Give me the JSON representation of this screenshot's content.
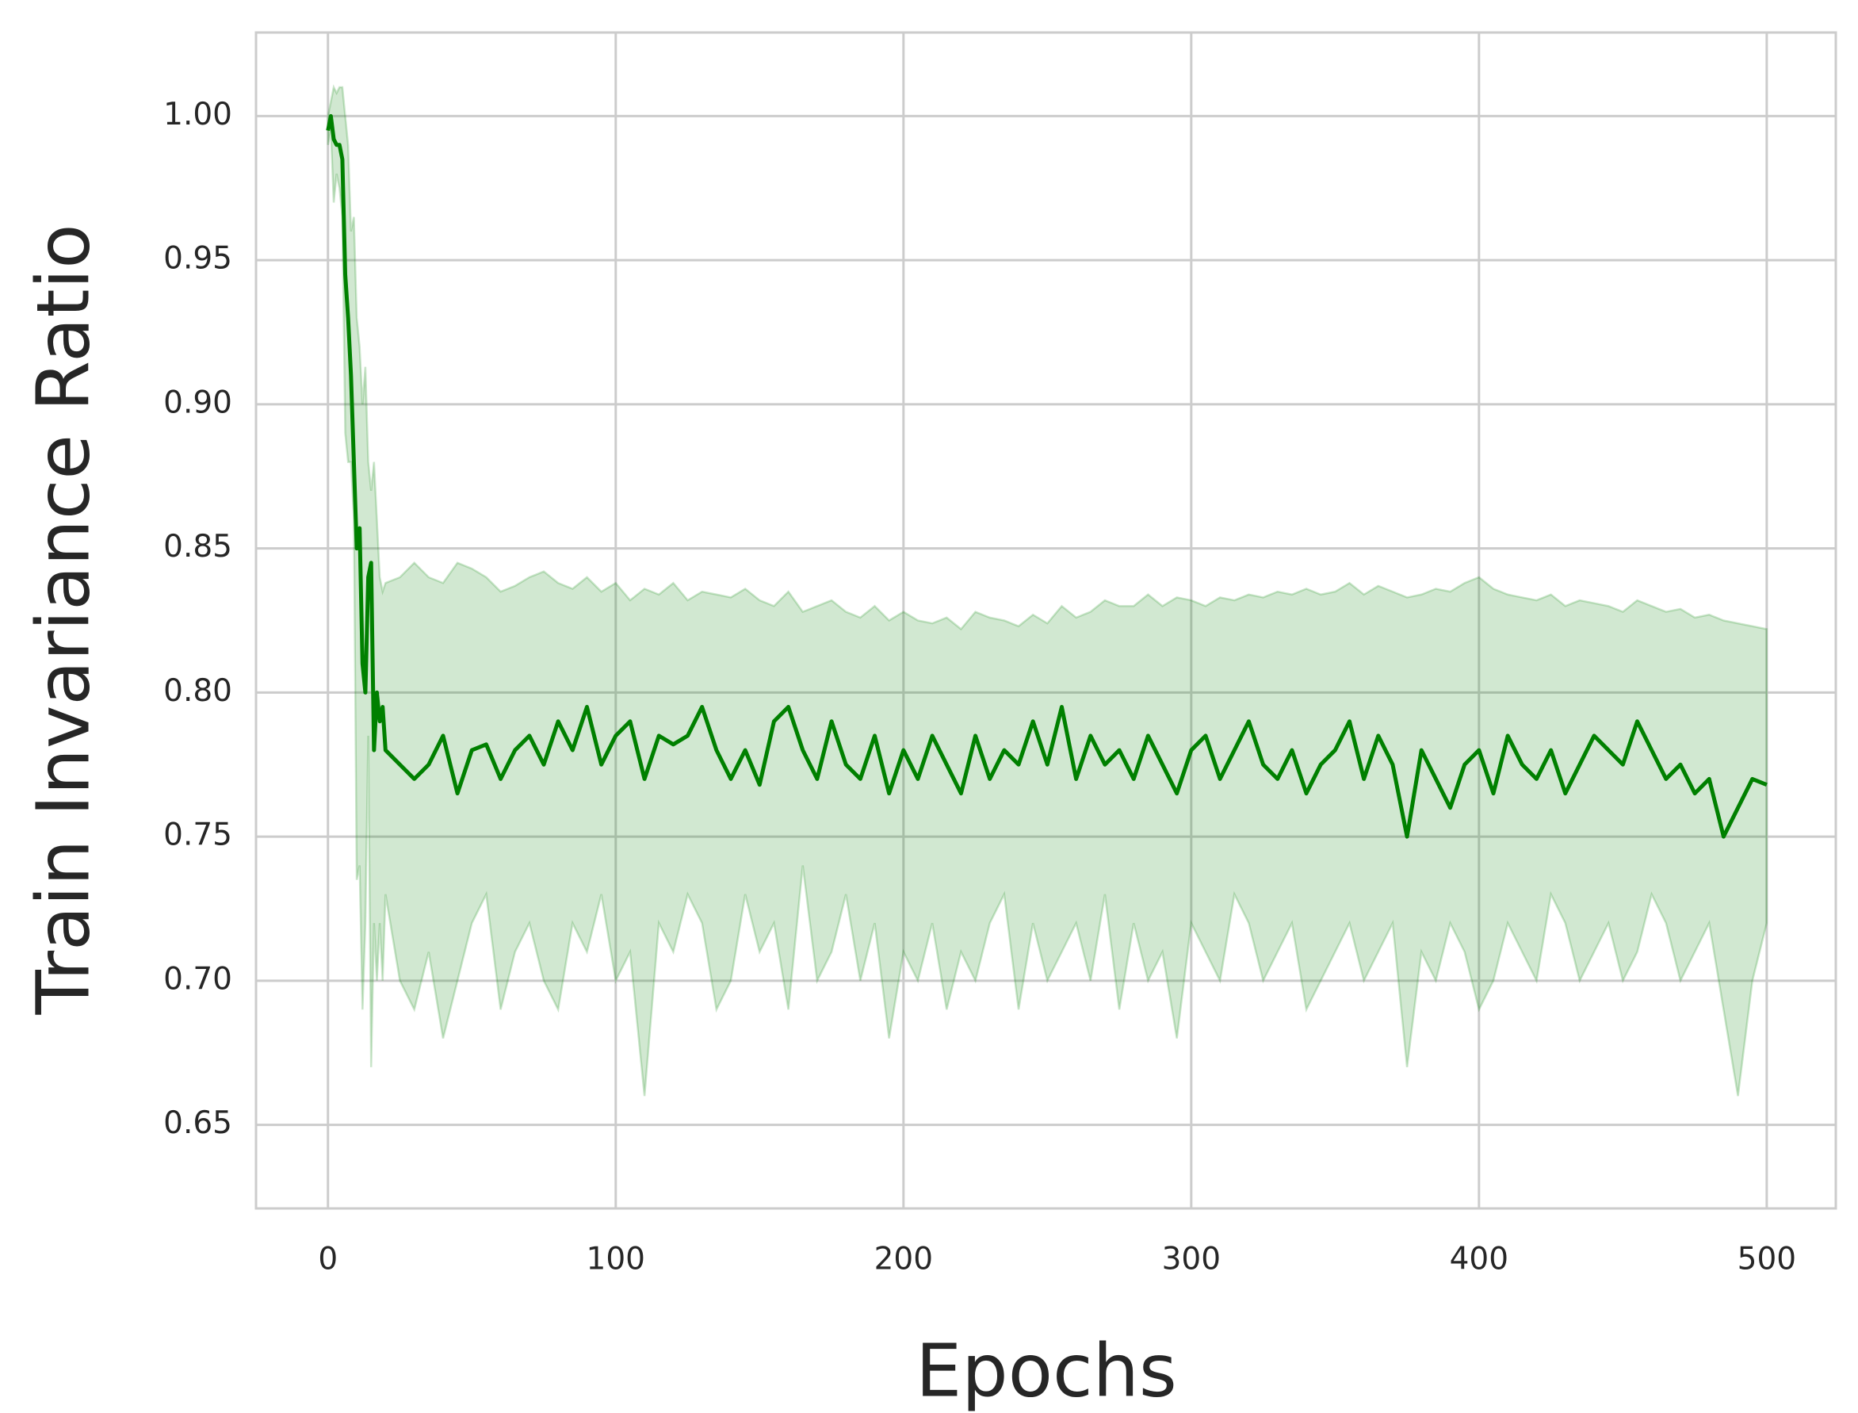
{
  "chart_data": {
    "type": "line",
    "x_label": "Epochs",
    "y_label": "Train Invariance Ratio",
    "xlim": [
      -25,
      524
    ],
    "ylim": [
      0.621,
      1.029
    ],
    "xticks": [
      0,
      100,
      200,
      300,
      400,
      500
    ],
    "yticks": [
      {
        "value": 0.65,
        "label": "0.65"
      },
      {
        "value": 0.7,
        "label": "0.70"
      },
      {
        "value": 0.75,
        "label": "0.75"
      },
      {
        "value": 0.8,
        "label": "0.80"
      },
      {
        "value": 0.85,
        "label": "0.85"
      },
      {
        "value": 0.9,
        "label": "0.90"
      },
      {
        "value": 0.95,
        "label": "0.95"
      },
      {
        "value": 1.0,
        "label": "1.00"
      }
    ],
    "grid": true,
    "x": [
      0,
      1,
      2,
      3,
      4,
      5,
      6,
      7,
      8,
      9,
      10,
      11,
      12,
      13,
      14,
      15,
      16,
      17,
      18,
      19,
      20,
      25,
      30,
      35,
      40,
      45,
      50,
      55,
      60,
      65,
      70,
      75,
      80,
      85,
      90,
      95,
      100,
      105,
      110,
      115,
      120,
      125,
      130,
      135,
      140,
      145,
      150,
      155,
      160,
      165,
      170,
      175,
      180,
      185,
      190,
      195,
      200,
      205,
      210,
      215,
      220,
      225,
      230,
      235,
      240,
      245,
      250,
      255,
      260,
      265,
      270,
      275,
      280,
      285,
      290,
      295,
      300,
      305,
      310,
      315,
      320,
      325,
      330,
      335,
      340,
      345,
      350,
      355,
      360,
      365,
      370,
      375,
      380,
      385,
      390,
      395,
      400,
      405,
      410,
      415,
      420,
      425,
      430,
      435,
      440,
      445,
      450,
      455,
      460,
      465,
      470,
      475,
      480,
      485,
      490,
      495,
      500
    ],
    "series": [
      {
        "color": "#008000",
        "values": [
          0.995,
          1.0,
          0.992,
          0.99,
          0.99,
          0.985,
          0.945,
          0.93,
          0.91,
          0.88,
          0.85,
          0.857,
          0.81,
          0.8,
          0.84,
          0.845,
          0.78,
          0.8,
          0.79,
          0.795,
          0.78,
          0.775,
          0.77,
          0.775,
          0.785,
          0.765,
          0.78,
          0.782,
          0.77,
          0.78,
          0.785,
          0.775,
          0.79,
          0.78,
          0.795,
          0.775,
          0.785,
          0.79,
          0.77,
          0.785,
          0.782,
          0.785,
          0.795,
          0.78,
          0.77,
          0.78,
          0.768,
          0.79,
          0.795,
          0.78,
          0.77,
          0.79,
          0.775,
          0.77,
          0.785,
          0.765,
          0.78,
          0.77,
          0.785,
          0.775,
          0.765,
          0.785,
          0.77,
          0.78,
          0.775,
          0.79,
          0.775,
          0.795,
          0.77,
          0.785,
          0.775,
          0.78,
          0.77,
          0.785,
          0.775,
          0.765,
          0.78,
          0.785,
          0.77,
          0.78,
          0.79,
          0.775,
          0.77,
          0.78,
          0.765,
          0.775,
          0.78,
          0.79,
          0.77,
          0.785,
          0.775,
          0.75,
          0.78,
          0.77,
          0.76,
          0.775,
          0.78,
          0.765,
          0.785,
          0.775,
          0.77,
          0.78,
          0.765,
          0.775,
          0.785,
          0.78,
          0.775,
          0.79,
          0.78,
          0.77,
          0.775,
          0.765,
          0.77,
          0.75,
          0.76,
          0.77,
          0.768
        ],
        "upper": [
          1.0,
          1.005,
          1.01,
          1.008,
          1.01,
          1.01,
          1.0,
          0.99,
          0.96,
          0.965,
          0.93,
          0.92,
          0.9,
          0.913,
          0.88,
          0.87,
          0.88,
          0.86,
          0.84,
          0.835,
          0.838,
          0.84,
          0.845,
          0.84,
          0.838,
          0.845,
          0.843,
          0.84,
          0.835,
          0.837,
          0.84,
          0.842,
          0.838,
          0.836,
          0.84,
          0.835,
          0.838,
          0.832,
          0.836,
          0.834,
          0.838,
          0.832,
          0.835,
          0.834,
          0.833,
          0.836,
          0.832,
          0.83,
          0.835,
          0.828,
          0.83,
          0.832,
          0.828,
          0.826,
          0.83,
          0.825,
          0.828,
          0.825,
          0.824,
          0.826,
          0.822,
          0.828,
          0.826,
          0.825,
          0.823,
          0.827,
          0.824,
          0.83,
          0.826,
          0.828,
          0.832,
          0.83,
          0.83,
          0.834,
          0.83,
          0.833,
          0.832,
          0.83,
          0.833,
          0.832,
          0.834,
          0.833,
          0.835,
          0.834,
          0.836,
          0.834,
          0.835,
          0.838,
          0.834,
          0.837,
          0.835,
          0.833,
          0.834,
          0.836,
          0.835,
          0.838,
          0.84,
          0.836,
          0.834,
          0.833,
          0.832,
          0.834,
          0.83,
          0.832,
          0.831,
          0.83,
          0.828,
          0.832,
          0.83,
          0.828,
          0.829,
          0.826,
          0.827,
          0.825,
          0.824,
          0.823,
          0.822
        ],
        "lower": [
          0.99,
          0.995,
          0.97,
          0.98,
          0.975,
          0.965,
          0.89,
          0.88,
          0.88,
          0.86,
          0.735,
          0.74,
          0.69,
          0.72,
          0.785,
          0.67,
          0.72,
          0.7,
          0.72,
          0.7,
          0.73,
          0.7,
          0.69,
          0.71,
          0.68,
          0.7,
          0.72,
          0.73,
          0.69,
          0.71,
          0.72,
          0.7,
          0.69,
          0.72,
          0.71,
          0.73,
          0.7,
          0.71,
          0.66,
          0.72,
          0.71,
          0.73,
          0.72,
          0.69,
          0.7,
          0.73,
          0.71,
          0.72,
          0.69,
          0.74,
          0.7,
          0.71,
          0.73,
          0.7,
          0.72,
          0.68,
          0.71,
          0.7,
          0.72,
          0.69,
          0.71,
          0.7,
          0.72,
          0.73,
          0.69,
          0.72,
          0.7,
          0.71,
          0.72,
          0.7,
          0.73,
          0.69,
          0.72,
          0.7,
          0.71,
          0.68,
          0.72,
          0.71,
          0.7,
          0.73,
          0.72,
          0.7,
          0.71,
          0.72,
          0.69,
          0.7,
          0.71,
          0.72,
          0.7,
          0.71,
          0.72,
          0.67,
          0.71,
          0.7,
          0.72,
          0.71,
          0.69,
          0.7,
          0.72,
          0.71,
          0.7,
          0.73,
          0.72,
          0.7,
          0.71,
          0.72,
          0.7,
          0.71,
          0.73,
          0.72,
          0.7,
          0.71,
          0.72,
          0.69,
          0.66,
          0.7,
          0.72
        ]
      }
    ]
  }
}
